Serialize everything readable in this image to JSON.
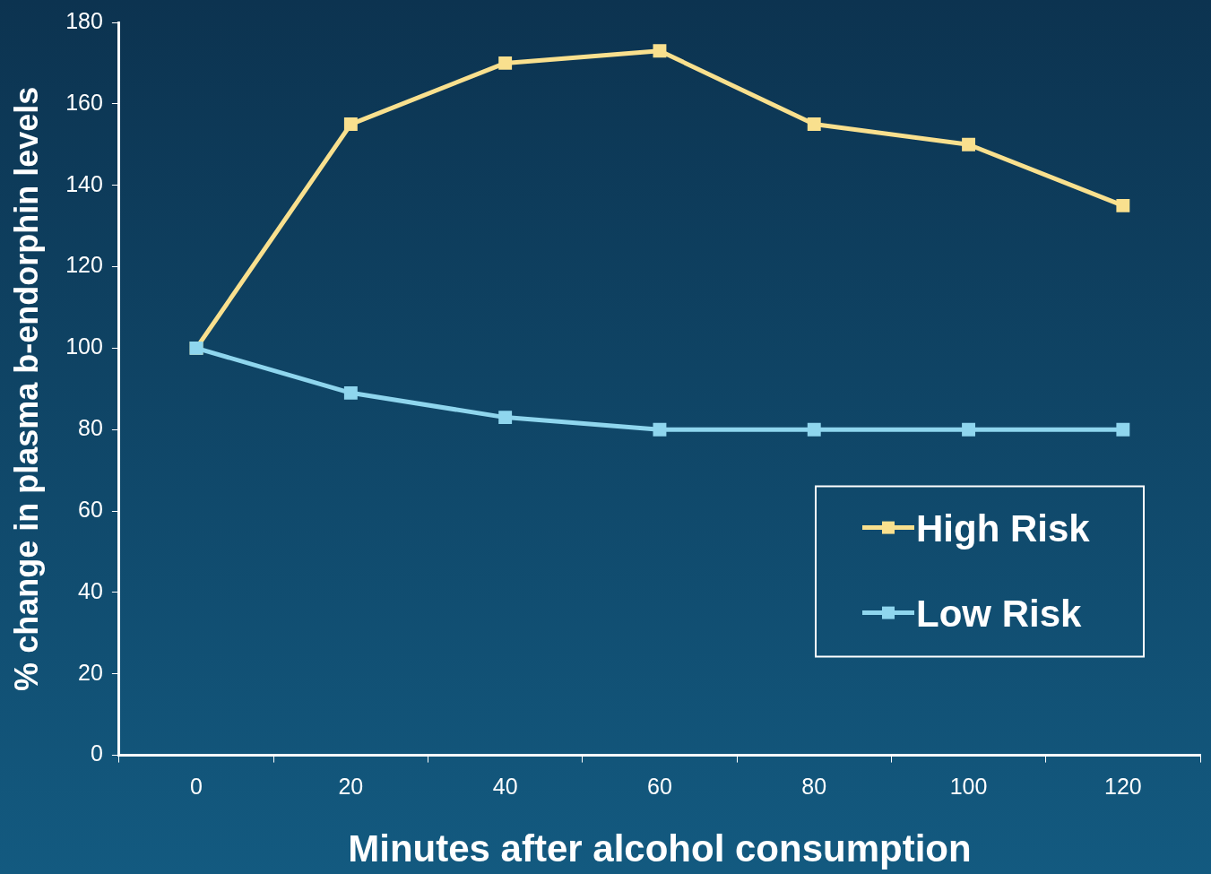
{
  "chart_data": {
    "type": "line",
    "xlabel": "Minutes after alcohol consumption",
    "ylabel": "% change in plasma b-endorphin levels",
    "categories": [
      "0",
      "20",
      "40",
      "60",
      "80",
      "100",
      "120"
    ],
    "series": [
      {
        "name": "High Risk",
        "color": "#f9e08e",
        "values": [
          100,
          155,
          170,
          173,
          155,
          150,
          135
        ]
      },
      {
        "name": "Low Risk",
        "color": "#8fd6ee",
        "values": [
          100,
          89,
          83,
          80,
          80,
          80,
          80
        ]
      }
    ],
    "ylim": [
      0,
      180
    ],
    "yticks": [
      0,
      20,
      40,
      60,
      80,
      100,
      120,
      140,
      160,
      180
    ],
    "grid": false,
    "legend": "bottom right",
    "marker": "square",
    "line_style": "solid"
  }
}
